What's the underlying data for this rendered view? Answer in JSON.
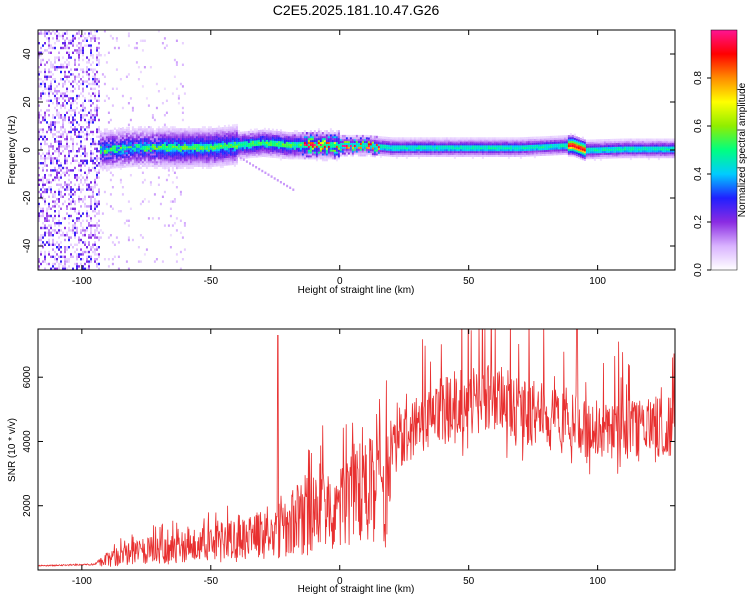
{
  "title": "C2E5.2025.181.10.47.G26",
  "chart_data": [
    {
      "type": "heatmap",
      "xlabel": "Height of straight line (km)",
      "ylabel": "Frequency (Hz)",
      "xlim": [
        -117,
        130
      ],
      "ylim": [
        -50,
        50
      ],
      "x_ticks": [
        -100,
        -50,
        0,
        50,
        100
      ],
      "y_ticks": [
        -40,
        -20,
        0,
        20,
        40
      ],
      "colorbar": {
        "label": "Normalized spectral amplitude",
        "range": [
          0,
          1
        ],
        "ticks": [
          0.0,
          0.2,
          0.4,
          0.6,
          0.8
        ],
        "tick_labels": [
          "0.0",
          "0.2",
          "0.4",
          "0.6",
          "0.8"
        ],
        "colors": [
          "#ffffff",
          "#d9b3ff",
          "#8a2be2",
          "#2020ff",
          "#00ccff",
          "#00ff80",
          "#90ee00",
          "#ffff00",
          "#ff8c00",
          "#ff0000",
          "#ff1493"
        ]
      },
      "ridge": {
        "x": [
          -93,
          -80,
          -70,
          -60,
          -50,
          -40,
          -30,
          -20,
          -10,
          0,
          10,
          20,
          30,
          50,
          70,
          90,
          95,
          110,
          130
        ],
        "center": [
          0,
          1,
          1,
          1,
          1,
          2,
          3,
          2,
          2,
          2,
          2,
          1,
          1,
          1,
          1,
          2,
          0,
          0.5,
          0.5
        ]
      },
      "noise_region": {
        "x": [
          -117,
          -93
        ],
        "note": ""
      }
    },
    {
      "type": "line",
      "xlabel": "Height of straight line (km)",
      "ylabel": "SNR (10 * v/v)",
      "xlim": [
        -117,
        130
      ],
      "ylim": [
        0,
        7500
      ],
      "x_ticks": [
        -100,
        -50,
        0,
        50,
        100
      ],
      "y_ticks": [
        2000,
        4000,
        6000
      ],
      "color": "#e83030",
      "envelope": {
        "x": [
          -117,
          -95,
          -90,
          -80,
          -70,
          -60,
          -50,
          -40,
          -30,
          -25,
          -20,
          -10,
          0,
          10,
          20,
          30,
          40,
          50,
          60,
          70,
          80,
          90,
          100,
          110,
          120,
          130
        ],
        "y": [
          150,
          200,
          600,
          900,
          1100,
          1200,
          1400,
          1600,
          1800,
          2000,
          2500,
          3200,
          3600,
          3900,
          4500,
          5500,
          6200,
          6400,
          6400,
          6100,
          5700,
          5500,
          5300,
          5300,
          5400,
          5400
        ]
      },
      "spikes": [
        {
          "x": -24,
          "y": 7300
        },
        {
          "x": 92,
          "y": 7500
        }
      ]
    }
  ]
}
